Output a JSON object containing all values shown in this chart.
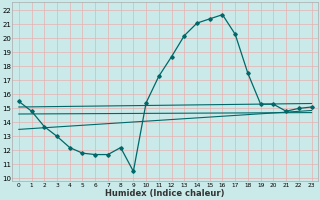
{
  "title": "",
  "xlabel": "Humidex (Indice chaleur)",
  "bg_color": "#caeaea",
  "grid_color": "#e8b0b0",
  "line_color": "#006868",
  "x_ticks": [
    0,
    1,
    2,
    3,
    4,
    5,
    6,
    7,
    8,
    9,
    10,
    11,
    12,
    13,
    14,
    15,
    16,
    17,
    18,
    19,
    20,
    21,
    22,
    23
  ],
  "y_ticks": [
    10,
    11,
    12,
    13,
    14,
    15,
    16,
    17,
    18,
    19,
    20,
    21,
    22
  ],
  "ylim": [
    9.8,
    22.6
  ],
  "xlim": [
    -0.5,
    23.5
  ],
  "curve1_x": [
    0,
    1,
    2,
    3,
    4,
    5,
    6,
    7,
    8,
    9,
    10,
    11,
    12,
    13,
    14,
    15,
    16,
    17,
    18,
    19,
    20,
    21,
    22,
    23
  ],
  "curve1_y": [
    15.5,
    14.8,
    13.7,
    13.0,
    12.2,
    11.8,
    11.7,
    11.7,
    12.2,
    10.5,
    15.4,
    17.3,
    18.7,
    20.2,
    21.1,
    21.4,
    21.7,
    20.3,
    17.5,
    15.3,
    15.3,
    14.8,
    15.0,
    15.1
  ],
  "line2_x": [
    0,
    23
  ],
  "line2_y": [
    15.1,
    15.35
  ],
  "line3_x": [
    0,
    23
  ],
  "line3_y": [
    14.6,
    14.7
  ],
  "line4_x": [
    0,
    23
  ],
  "line4_y": [
    13.5,
    14.85
  ]
}
